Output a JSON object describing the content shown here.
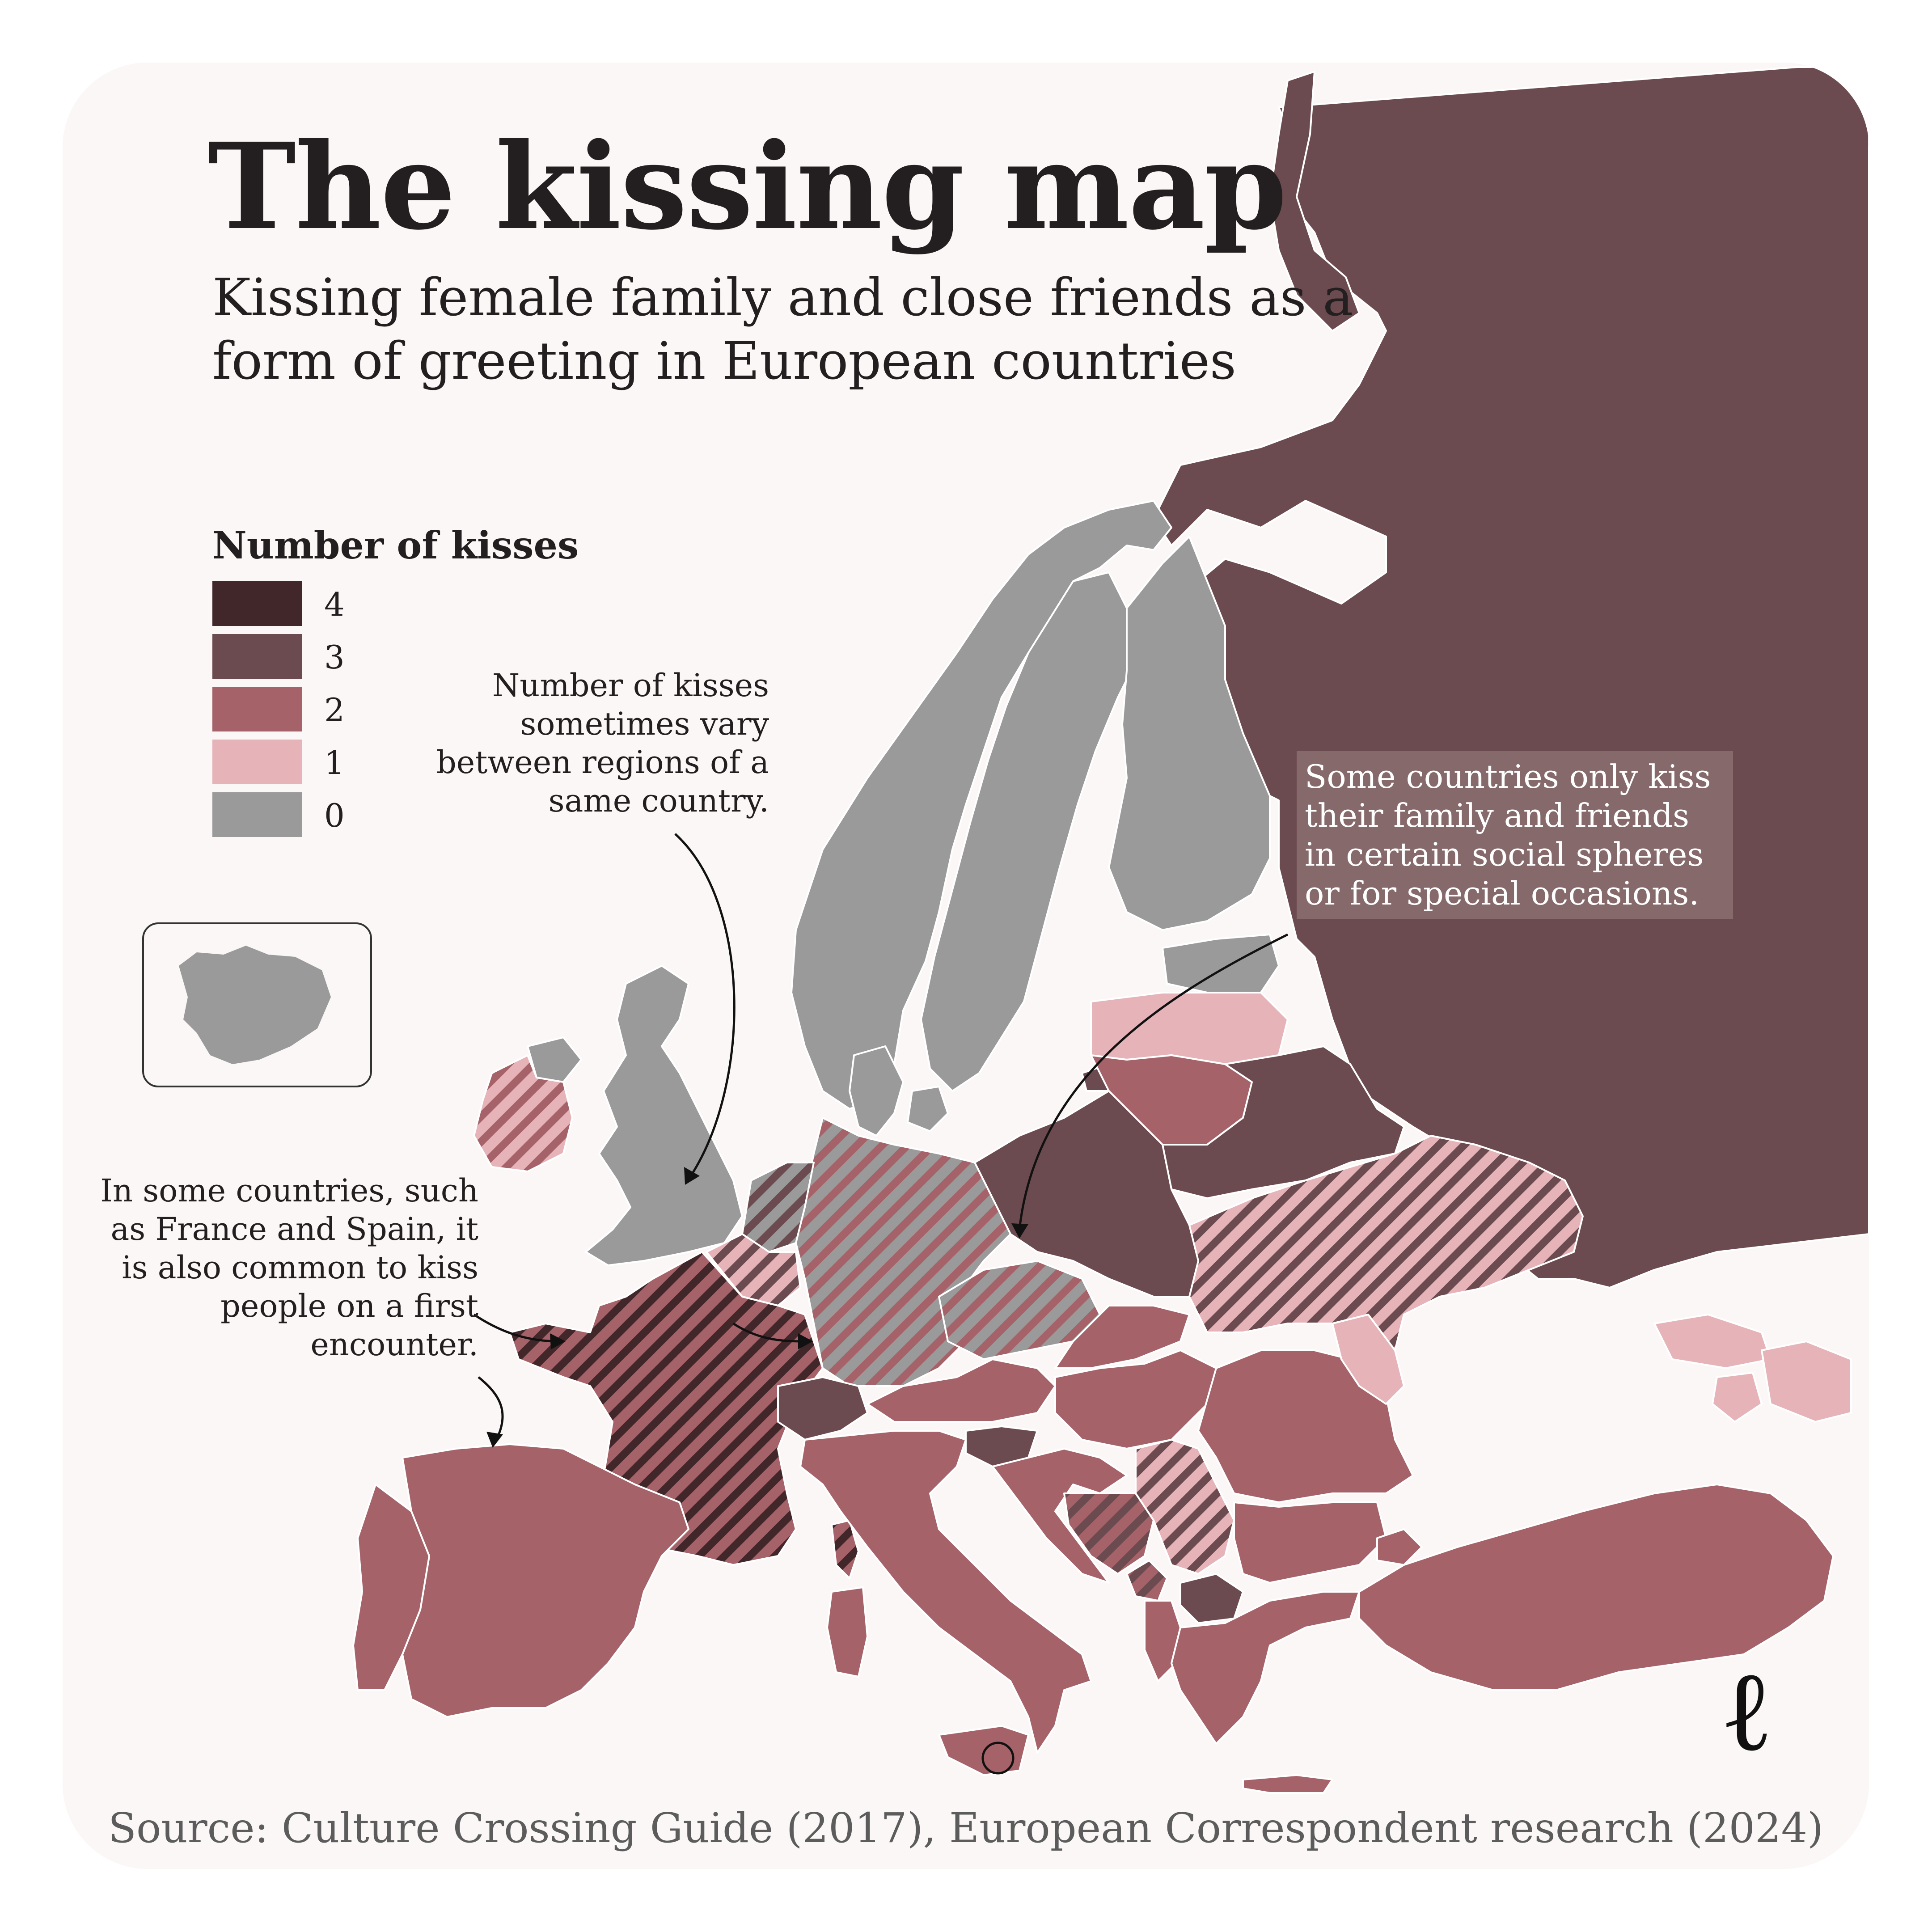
{
  "title": "The kissing map",
  "subtitle": "Kissing female family and close friends as a form of greeting in European countries",
  "legend": {
    "title": "Number of kisses",
    "items": [
      {
        "label": "4",
        "color": "#41262a"
      },
      {
        "label": "3",
        "color": "#6b4b4f"
      },
      {
        "label": "2",
        "color": "#a56268"
      },
      {
        "label": "1",
        "color": "#e5b3b8"
      },
      {
        "label": "0",
        "color": "#9a9a9a"
      }
    ]
  },
  "annotations": {
    "regions_note": "Number of kisses sometimes vary between regions of a same country.",
    "first_encounter_note": "In some countries, such as France and Spain, it is also common to kiss people on a first encounter.",
    "occasions_note": "Some countries only kiss their family and friends in certain social spheres or for special occasions."
  },
  "source": "Source: Culture Crossing Guide (2017), European Correspondent research (2024)",
  "brand_mark": "ℓ",
  "colors": {
    "background": "#fbf7f6",
    "four": "#41262a",
    "three": "#6b4b4f",
    "two": "#a56268",
    "one": "#e5b3b8",
    "zero": "#9a9a9a",
    "border": "#ffffff"
  },
  "countries": [
    {
      "name": "Russia",
      "kisses": "3"
    },
    {
      "name": "Belarus",
      "kisses": "3"
    },
    {
      "name": "Poland",
      "kisses": "3"
    },
    {
      "name": "Switzerland",
      "kisses": "3"
    },
    {
      "name": "Slovenia",
      "kisses": "3"
    },
    {
      "name": "North Macedonia",
      "kisses": "3"
    },
    {
      "name": "Lithuania",
      "kisses": "2"
    },
    {
      "name": "Spain",
      "kisses": "2"
    },
    {
      "name": "Portugal",
      "kisses": "2"
    },
    {
      "name": "Italy",
      "kisses": "2"
    },
    {
      "name": "Austria",
      "kisses": "2"
    },
    {
      "name": "Hungary",
      "kisses": "2"
    },
    {
      "name": "Slovakia",
      "kisses": "2"
    },
    {
      "name": "Romania",
      "kisses": "2"
    },
    {
      "name": "Bulgaria",
      "kisses": "2"
    },
    {
      "name": "Greece",
      "kisses": "2"
    },
    {
      "name": "Albania",
      "kisses": "2"
    },
    {
      "name": "Croatia",
      "kisses": "2"
    },
    {
      "name": "Turkey",
      "kisses": "2"
    },
    {
      "name": "Latvia",
      "kisses": "1"
    },
    {
      "name": "Moldova",
      "kisses": "1"
    },
    {
      "name": "Georgia",
      "kisses": "1"
    },
    {
      "name": "Armenia",
      "kisses": "1"
    },
    {
      "name": "Azerbaijan",
      "kisses": "1"
    },
    {
      "name": "Norway",
      "kisses": "0"
    },
    {
      "name": "Sweden",
      "kisses": "0"
    },
    {
      "name": "Finland",
      "kisses": "0"
    },
    {
      "name": "Estonia",
      "kisses": "0"
    },
    {
      "name": "Denmark",
      "kisses": "0"
    },
    {
      "name": "United Kingdom",
      "kisses": "0"
    },
    {
      "name": "Iceland",
      "kisses": "0"
    },
    {
      "name": "France",
      "kisses": "2–4"
    },
    {
      "name": "Corsica",
      "kisses": "2–4"
    },
    {
      "name": "Germany",
      "kisses": "0–2"
    },
    {
      "name": "Czechia",
      "kisses": "0–2"
    },
    {
      "name": "Netherlands",
      "kisses": "0–3"
    },
    {
      "name": "Belgium",
      "kisses": "1–3"
    },
    {
      "name": "Ireland",
      "kisses": "1–2"
    },
    {
      "name": "Ukraine",
      "kisses": "1–3"
    },
    {
      "name": "Serbia",
      "kisses": "1–3"
    },
    {
      "name": "Bosnia and Herzegovina",
      "kisses": "2–3"
    },
    {
      "name": "Montenegro",
      "kisses": "2–3"
    }
  ]
}
